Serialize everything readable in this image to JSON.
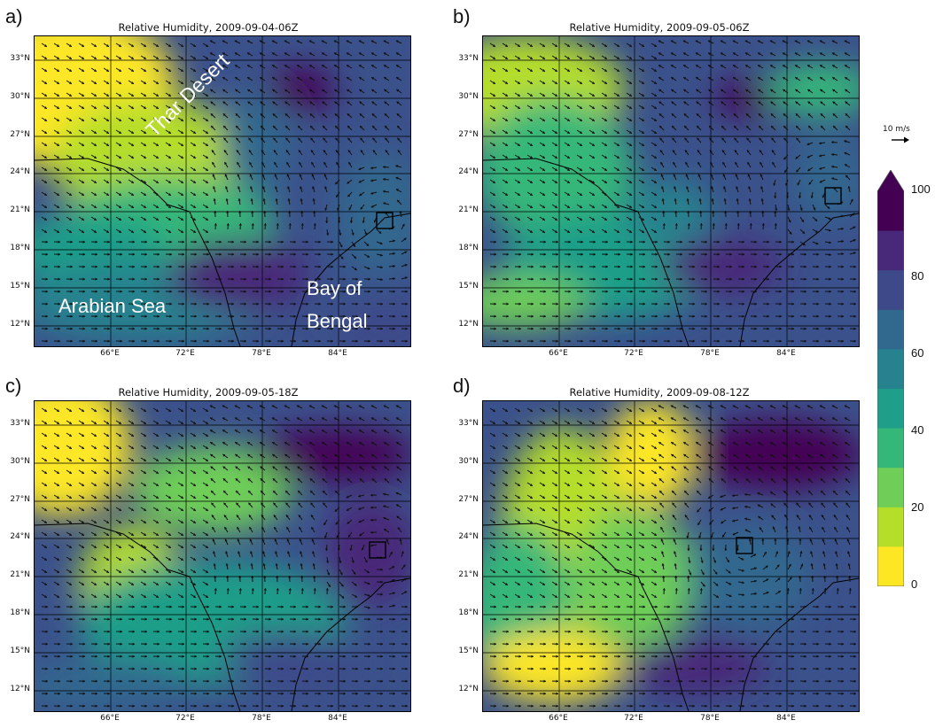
{
  "panels": [
    {
      "label": "a)",
      "title": "Relative Humidity, 2009-09-04-06Z"
    },
    {
      "label": "b)",
      "title": "Relative Humidity, 2009-09-05-06Z"
    },
    {
      "label": "c)",
      "title": "Relative Humidity, 2009-09-05-18Z"
    },
    {
      "label": "d)",
      "title": "Relative Humidity, 2009-09-08-12Z"
    }
  ],
  "lat_ticks": [
    "33°N",
    "30°N",
    "27°N",
    "24°N",
    "21°N",
    "18°N",
    "15°N",
    "12°N"
  ],
  "lon_ticks": [
    "66°E",
    "72°E",
    "78°E",
    "84°E"
  ],
  "annotations": {
    "thar": "Thar Desert",
    "arabian": "Arabian Sea",
    "bay_line1": "Bay of",
    "bay_line2": "Bengal"
  },
  "colorbar": {
    "ticks": [
      "100",
      "80",
      "60",
      "40",
      "20",
      "0"
    ],
    "extend": "max",
    "colormap": "viridis_r",
    "colors": [
      "#440154",
      "#482878",
      "#3e4989",
      "#31688e",
      "#26828e",
      "#1f9e89",
      "#35b779",
      "#6ece58",
      "#b5de2b",
      "#fde725"
    ]
  },
  "reference_vector": {
    "label": "10 m/s"
  }
}
